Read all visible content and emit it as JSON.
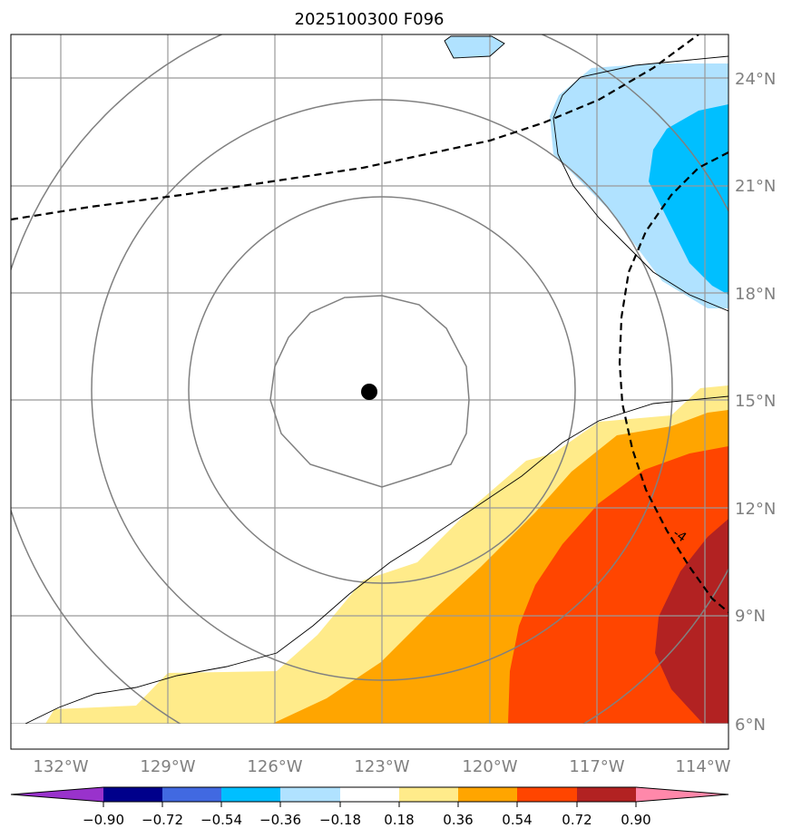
{
  "title": "2025100300 F096",
  "map": {
    "lon_labels": [
      "132°W",
      "129°W",
      "126°W",
      "123°W",
      "120°W",
      "117°W",
      "114°W"
    ],
    "lat_labels": [
      "24°N",
      "21°N",
      "18°N",
      "15°N",
      "12°N",
      "9°N",
      "6°N"
    ],
    "lon_range": [
      -133.3,
      -113.3
    ],
    "lat_range": [
      5.0,
      25.0
    ],
    "storm_center": {
      "lon": -123.3,
      "lat": 15.2
    },
    "contour_label": "-4"
  },
  "colorbar": {
    "ticks": [
      "−0.90",
      "−0.72",
      "−0.54",
      "−0.36",
      "−0.18",
      "0.18",
      "0.36",
      "0.54",
      "0.72",
      "0.90"
    ],
    "colors": [
      "#9932cc",
      "#00008b",
      "#4169e1",
      "#00bfff",
      "#b0e2ff",
      "#ffffff",
      "#ffeb8a",
      "#ffa500",
      "#ff4500",
      "#b22222",
      "#ff88aa"
    ]
  }
}
